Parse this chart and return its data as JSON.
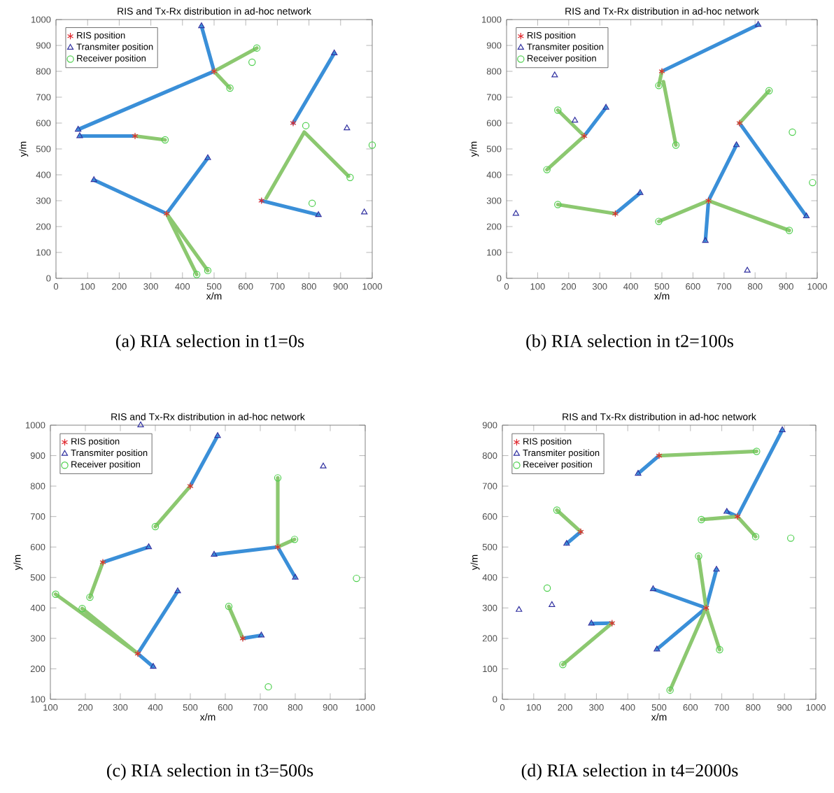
{
  "chart_data": [
    {
      "type": "scatter",
      "title": "RIS and Tx-Rx distribution in ad-hoc network",
      "xlabel": "x/m",
      "ylabel": "y/m",
      "xlim": [
        0,
        1000
      ],
      "ylim": [
        0,
        1000
      ],
      "xticks": [
        0,
        100,
        200,
        300,
        400,
        500,
        600,
        700,
        800,
        900,
        1000
      ],
      "yticks": [
        0,
        100,
        200,
        300,
        400,
        500,
        600,
        700,
        800,
        900,
        1000
      ],
      "legend": "top left",
      "annotations": [
        "(a) RIA selection in t1=0s"
      ],
      "series": [
        {
          "type": "line",
          "color": "#3a8fd8",
          "marker": "none",
          "x": [
            500,
            70,
            null,
            500,
            460,
            null,
            250,
            75,
            null,
            750,
            880,
            null,
            650,
            830,
            null,
            350,
            120,
            null,
            350,
            480
          ],
          "values": [
            800,
            575,
            null,
            800,
            975,
            null,
            550,
            550,
            null,
            600,
            870,
            null,
            300,
            245,
            null,
            250,
            380,
            null,
            250,
            465
          ]
        },
        {
          "type": "line",
          "color": "#8cc870",
          "marker": "none",
          "x": [
            500,
            635,
            null,
            500,
            550,
            null,
            250,
            345,
            null,
            785,
            665,
            null,
            785,
            925,
            null,
            350,
            445,
            null,
            350,
            480
          ],
          "values": [
            800,
            890,
            null,
            800,
            735,
            null,
            550,
            535,
            null,
            565,
            310,
            null,
            565,
            395,
            null,
            250,
            15,
            null,
            250,
            30
          ]
        },
        {
          "name": "RIS position",
          "color": "#e0282e",
          "marker": "cross",
          "x": [
            500,
            250,
            750,
            350,
            650
          ],
          "values": [
            800,
            550,
            600,
            250,
            300
          ]
        },
        {
          "name": "Transmiter position",
          "color": "#3030a0",
          "marker": "triangle",
          "x": [
            460,
            880,
            70,
            75,
            920,
            120,
            480,
            830,
            975
          ],
          "values": [
            975,
            870,
            575,
            550,
            580,
            380,
            465,
            245,
            255
          ]
        },
        {
          "name": "Receiver position",
          "color": "#50d050",
          "marker": "circle",
          "x": [
            635,
            620,
            550,
            345,
            790,
            1000,
            930,
            810,
            445,
            480
          ],
          "values": [
            890,
            835,
            735,
            535,
            590,
            515,
            390,
            290,
            15,
            30
          ]
        }
      ]
    },
    {
      "type": "scatter",
      "title": "RIS and Tx-Rx distribution in ad-hoc network",
      "xlabel": "x/m",
      "ylabel": "y/m",
      "xlim": [
        0,
        1000
      ],
      "ylim": [
        0,
        1000
      ],
      "xticks": [
        0,
        100,
        200,
        300,
        400,
        500,
        600,
        700,
        800,
        900,
        1000
      ],
      "yticks": [
        0,
        100,
        200,
        300,
        400,
        500,
        600,
        700,
        800,
        900,
        1000
      ],
      "legend": "top left",
      "annotations": [
        "(b) RIA selection in t2=100s"
      ],
      "series": [
        {
          "type": "line",
          "color": "#3a8fd8",
          "marker": "none",
          "x": [
            500,
            810,
            null,
            250,
            320,
            null,
            350,
            430,
            null,
            750,
            965,
            null,
            650,
            740,
            null,
            650,
            640
          ],
          "values": [
            800,
            980,
            null,
            550,
            660,
            null,
            250,
            330,
            null,
            600,
            240,
            null,
            300,
            515,
            null,
            300,
            145
          ]
        },
        {
          "type": "line",
          "color": "#8cc870",
          "marker": "none",
          "x": [
            500,
            490,
            null,
            505,
            545,
            null,
            250,
            165,
            null,
            250,
            130,
            null,
            350,
            165,
            null,
            750,
            845,
            null,
            650,
            490,
            null,
            650,
            910
          ],
          "values": [
            800,
            745,
            null,
            760,
            515,
            null,
            550,
            650,
            null,
            550,
            420,
            null,
            250,
            285,
            null,
            600,
            725,
            null,
            300,
            220,
            null,
            300,
            185
          ]
        },
        {
          "name": "RIS position",
          "color": "#e0282e",
          "marker": "cross",
          "x": [
            500,
            250,
            750,
            350,
            650
          ],
          "values": [
            800,
            550,
            600,
            250,
            300
          ]
        },
        {
          "name": "Transmiter position",
          "color": "#3030a0",
          "marker": "triangle",
          "x": [
            810,
            155,
            220,
            320,
            30,
            430,
            740,
            640,
            775,
            965
          ],
          "values": [
            980,
            785,
            610,
            660,
            250,
            330,
            515,
            145,
            30,
            240
          ]
        },
        {
          "name": "Receiver position",
          "color": "#50d050",
          "marker": "circle",
          "x": [
            490,
            545,
            165,
            130,
            165,
            845,
            920,
            985,
            490,
            910
          ],
          "values": [
            745,
            515,
            650,
            420,
            285,
            725,
            565,
            370,
            220,
            185
          ]
        }
      ]
    },
    {
      "type": "scatter",
      "title": "RIS and Tx-Rx distribution in ad-hoc network",
      "xlabel": "x/m",
      "ylabel": "y/m",
      "xlim": [
        100,
        1000
      ],
      "ylim": [
        100,
        1000
      ],
      "xticks": [
        100,
        200,
        300,
        400,
        500,
        600,
        700,
        800,
        900,
        1000
      ],
      "yticks": [
        100,
        200,
        300,
        400,
        500,
        600,
        700,
        800,
        900,
        1000
      ],
      "legend": "top left",
      "annotations": [
        "(c) RIA selection in t3=500s"
      ],
      "series": [
        {
          "type": "line",
          "color": "#3a8fd8",
          "marker": "none",
          "x": [
            500,
            578,
            null,
            250,
            381,
            null,
            350,
            464,
            null,
            350,
            394,
            null,
            750,
            568,
            null,
            750,
            800,
            null,
            650,
            703
          ],
          "values": [
            800,
            965,
            null,
            550,
            600,
            null,
            250,
            455,
            null,
            250,
            207,
            null,
            600,
            575,
            null,
            600,
            500,
            null,
            300,
            310
          ]
        },
        {
          "type": "line",
          "color": "#8cc870",
          "marker": "none",
          "x": [
            500,
            400,
            null,
            250,
            213,
            null,
            350,
            115,
            null,
            350,
            191,
            null,
            750,
            750,
            null,
            750,
            798,
            null,
            650,
            610
          ],
          "values": [
            800,
            667,
            null,
            550,
            435,
            null,
            250,
            445,
            null,
            250,
            398,
            null,
            600,
            827,
            null,
            600,
            625,
            null,
            300,
            405
          ]
        },
        {
          "name": "RIS position",
          "color": "#e0282e",
          "marker": "cross",
          "x": [
            500,
            250,
            750,
            350,
            650
          ],
          "values": [
            800,
            550,
            600,
            250,
            300
          ]
        },
        {
          "name": "Transmiter position",
          "color": "#3030a0",
          "marker": "triangle",
          "x": [
            358,
            578,
            880,
            381,
            568,
            800,
            464,
            703,
            394
          ],
          "values": [
            1000,
            965,
            865,
            600,
            575,
            500,
            455,
            310,
            207
          ]
        },
        {
          "name": "Receiver position",
          "color": "#50d050",
          "marker": "circle",
          "x": [
            750,
            798,
            400,
            975,
            115,
            191,
            213,
            610,
            723
          ],
          "values": [
            827,
            625,
            667,
            497,
            445,
            398,
            435,
            405,
            141
          ]
        }
      ]
    },
    {
      "type": "scatter",
      "title": "RIS and Tx-Rx distribution in ad-hoc network",
      "xlabel": "x/m",
      "ylabel": "y/m",
      "xlim": [
        0,
        1000
      ],
      "ylim": [
        0,
        900
      ],
      "xticks": [
        0,
        100,
        200,
        300,
        400,
        500,
        600,
        700,
        800,
        900,
        1000
      ],
      "yticks": [
        0,
        100,
        200,
        300,
        400,
        500,
        600,
        700,
        800,
        900
      ],
      "legend": "top left",
      "annotations": [
        "(d) RIA selection in t4=2000s"
      ],
      "series": [
        {
          "type": "line",
          "color": "#3a8fd8",
          "marker": "none",
          "x": [
            500,
            433,
            null,
            250,
            205,
            null,
            350,
            284,
            null,
            750,
            893,
            null,
            750,
            716,
            null,
            650,
            481,
            null,
            650,
            493,
            null,
            650,
            683
          ],
          "values": [
            800,
            741,
            null,
            550,
            511,
            null,
            250,
            249,
            null,
            600,
            884,
            null,
            600,
            616,
            null,
            300,
            362,
            null,
            300,
            164,
            null,
            300,
            426
          ]
        },
        {
          "type": "line",
          "color": "#8cc870",
          "marker": "none",
          "x": [
            500,
            811,
            null,
            250,
            174,
            null,
            350,
            193,
            null,
            750,
            635,
            null,
            750,
            808,
            null,
            650,
            626,
            null,
            650,
            535,
            null,
            650,
            693
          ],
          "values": [
            800,
            814,
            null,
            550,
            621,
            null,
            250,
            114,
            null,
            600,
            590,
            null,
            600,
            534,
            null,
            300,
            470,
            null,
            300,
            30,
            null,
            300,
            163
          ]
        },
        {
          "name": "RIS position",
          "color": "#e0282e",
          "marker": "cross",
          "x": [
            500,
            250,
            750,
            350,
            650
          ],
          "values": [
            800,
            550,
            600,
            250,
            300
          ]
        },
        {
          "name": "Transmiter position",
          "color": "#3030a0",
          "marker": "triangle",
          "x": [
            893,
            433,
            716,
            205,
            53,
            158,
            284,
            481,
            683,
            493
          ],
          "values": [
            884,
            741,
            616,
            511,
            294,
            310,
            249,
            362,
            426,
            164
          ]
        },
        {
          "name": "Receiver position",
          "color": "#50d050",
          "marker": "circle",
          "x": [
            811,
            635,
            808,
            920,
            174,
            143,
            193,
            626,
            693,
            535
          ],
          "values": [
            814,
            590,
            534,
            529,
            621,
            365,
            114,
            470,
            163,
            30
          ]
        }
      ]
    }
  ]
}
